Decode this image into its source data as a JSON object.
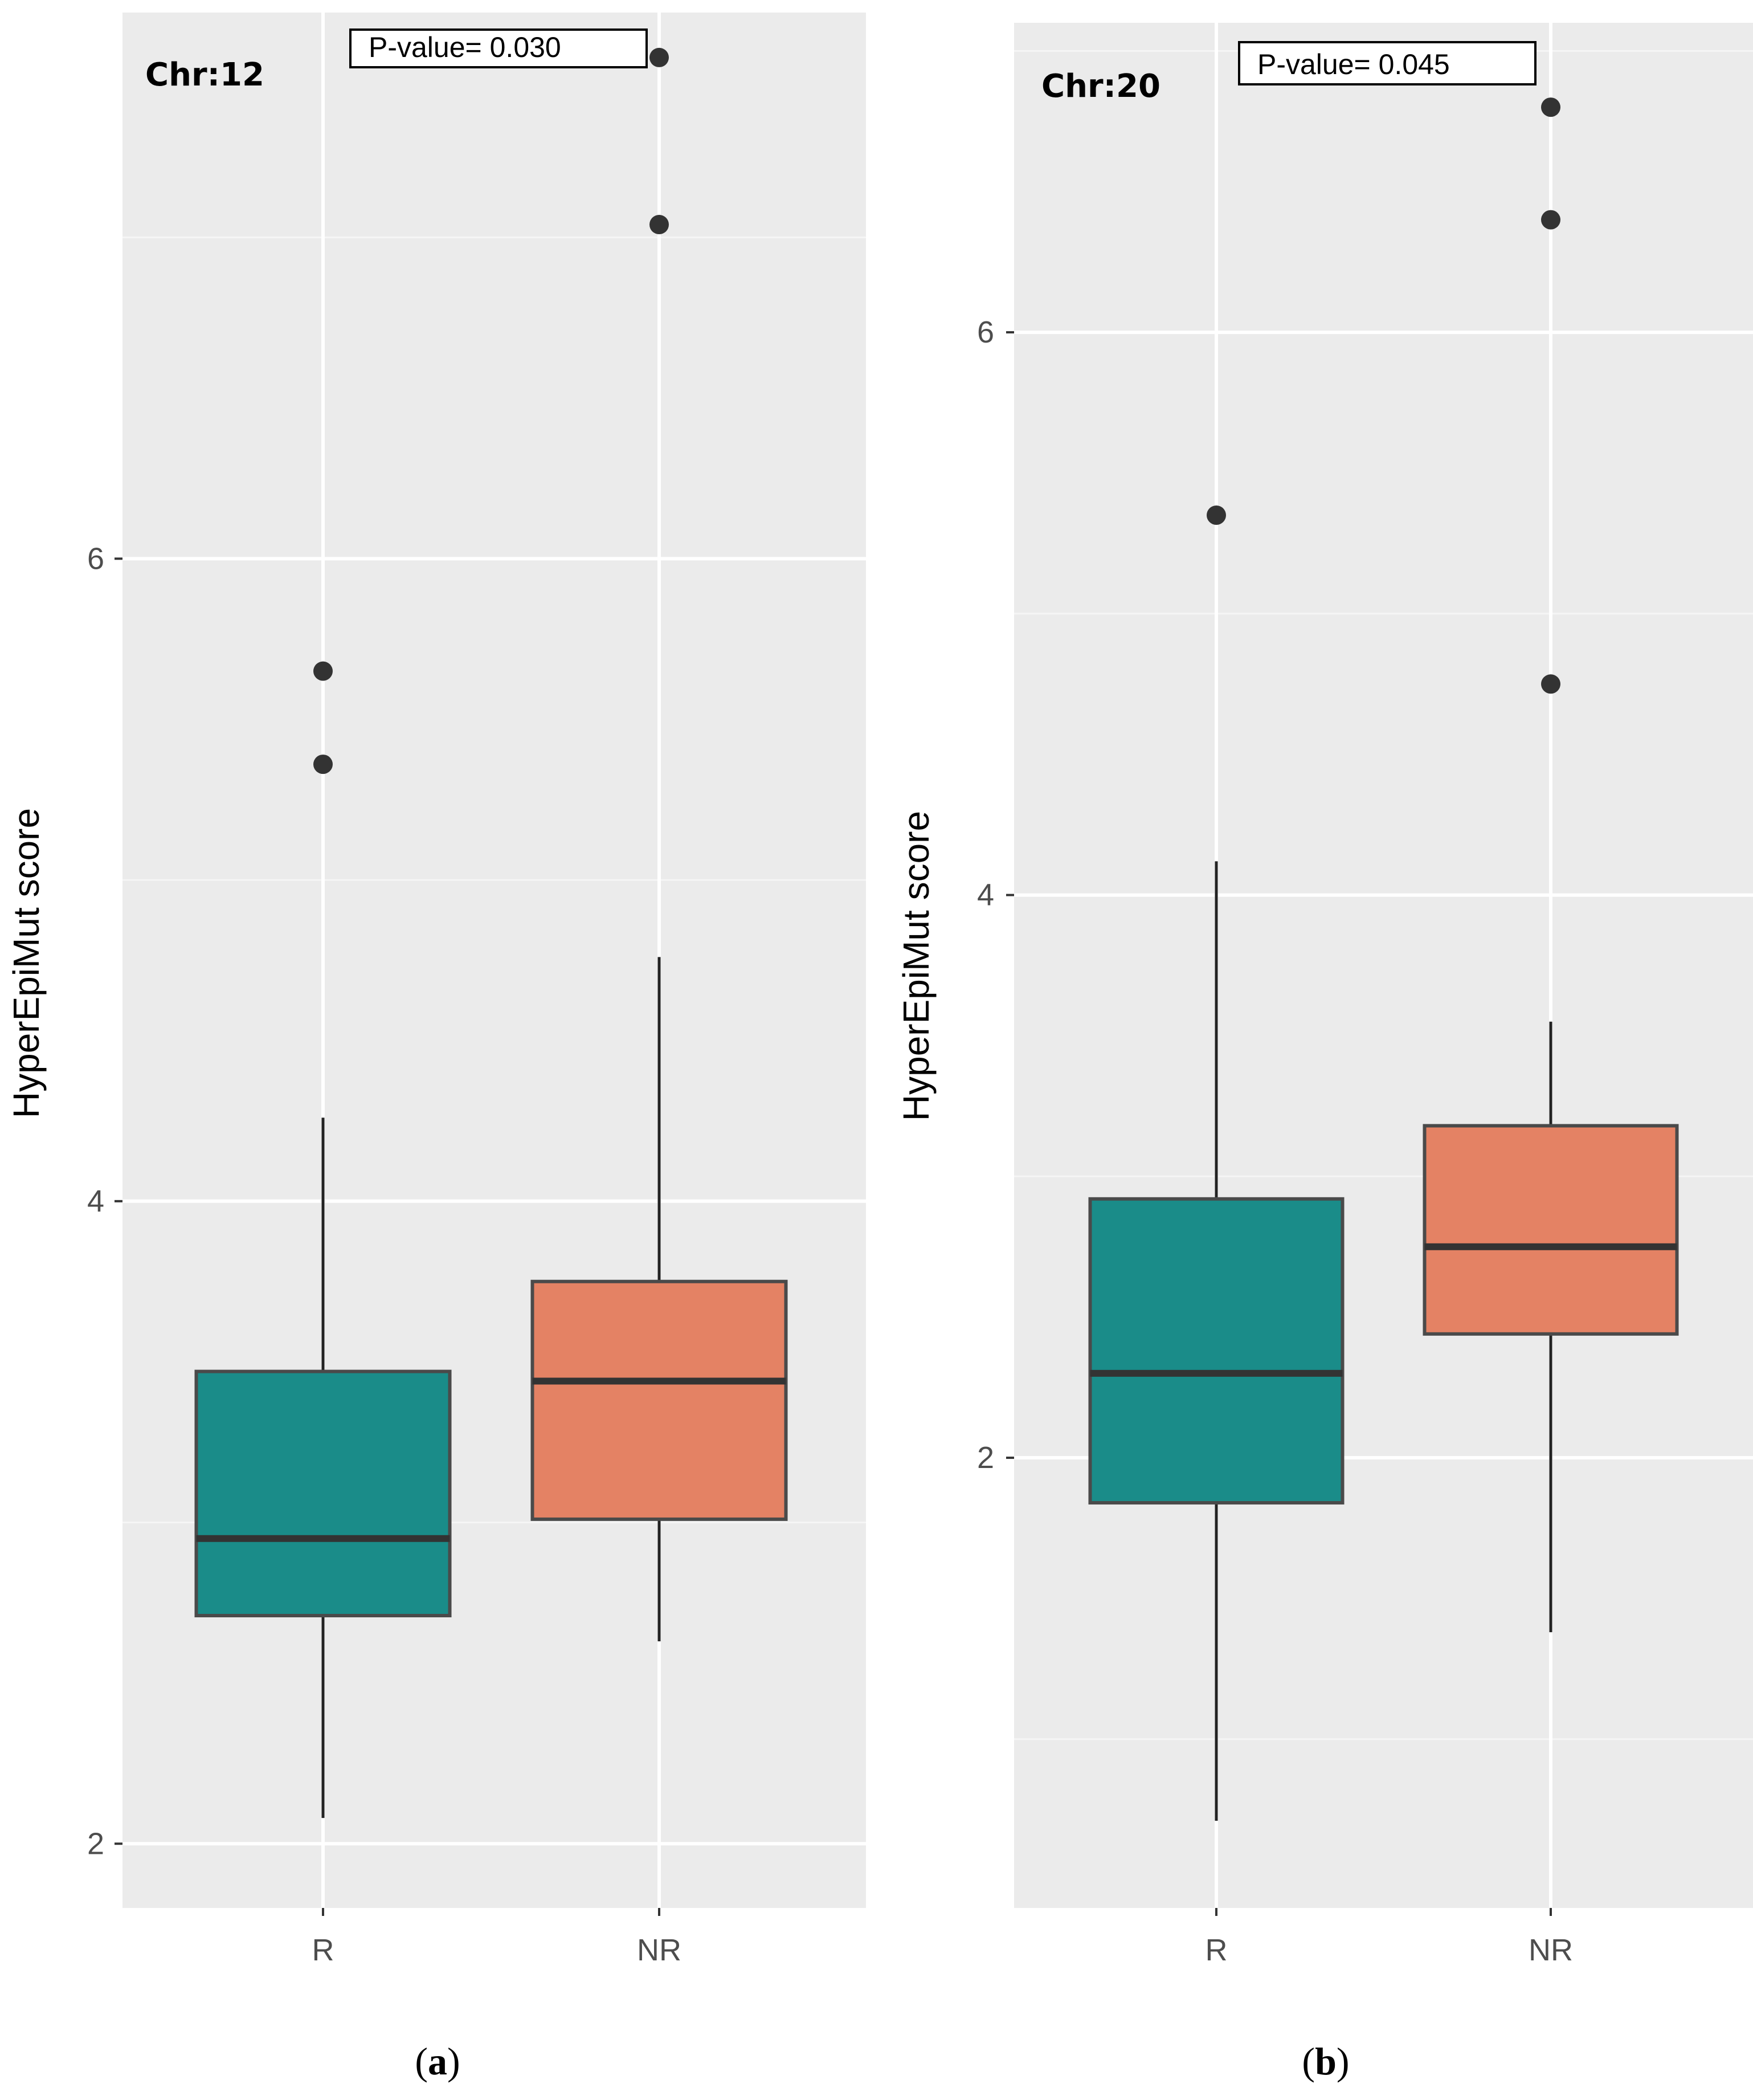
{
  "colors": {
    "panel_bg": "#EBEBEB",
    "grid_major": "#FFFFFF",
    "grid_minor": "#F5F5F5",
    "R": "#1A8C89",
    "NR": "#E48264",
    "median": "#333333",
    "outline": "#4A4A4A",
    "outlier": "#333333"
  },
  "chart_data": [
    {
      "type": "boxplot",
      "panel": "a",
      "caption_letter": "a",
      "title": "Chr:12",
      "annotation": "P-value=  0.030",
      "xlabel": "",
      "ylabel": "HyperEpiMut score",
      "categories": [
        "R",
        "NR"
      ],
      "yticks": [
        2,
        4,
        6
      ],
      "ylim": [
        1.8,
        7.7
      ],
      "grid": true,
      "boxes": [
        {
          "name": "R",
          "color": "#1A8C89",
          "whisker_low": 2.08,
          "q1": 2.71,
          "median": 2.95,
          "q3": 3.47,
          "whisker_high": 4.26,
          "outliers": [
            5.36,
            5.65
          ]
        },
        {
          "name": "NR",
          "color": "#E48264",
          "whisker_low": 2.63,
          "q1": 3.01,
          "median": 3.44,
          "q3": 3.75,
          "whisker_high": 4.76,
          "outliers": [
            7.04,
            7.56
          ]
        }
      ]
    },
    {
      "type": "boxplot",
      "panel": "b",
      "caption_letter": "b",
      "title": "Chr:20",
      "annotation": "P-value=  0.045",
      "xlabel": "",
      "ylabel": "HyperEpiMut score",
      "categories": [
        "R",
        "NR"
      ],
      "yticks": [
        2,
        4,
        6
      ],
      "ylim": [
        0.4,
        7.1
      ],
      "grid": true,
      "boxes": [
        {
          "name": "R",
          "color": "#1A8C89",
          "whisker_low": 0.71,
          "q1": 1.84,
          "median": 2.3,
          "q3": 2.92,
          "whisker_high": 4.12,
          "outliers": [
            5.35
          ]
        },
        {
          "name": "NR",
          "color": "#E48264",
          "whisker_low": 1.38,
          "q1": 2.44,
          "median": 2.75,
          "q3": 3.18,
          "whisker_high": 3.55,
          "outliers": [
            4.75,
            6.4,
            6.8
          ]
        }
      ]
    }
  ]
}
